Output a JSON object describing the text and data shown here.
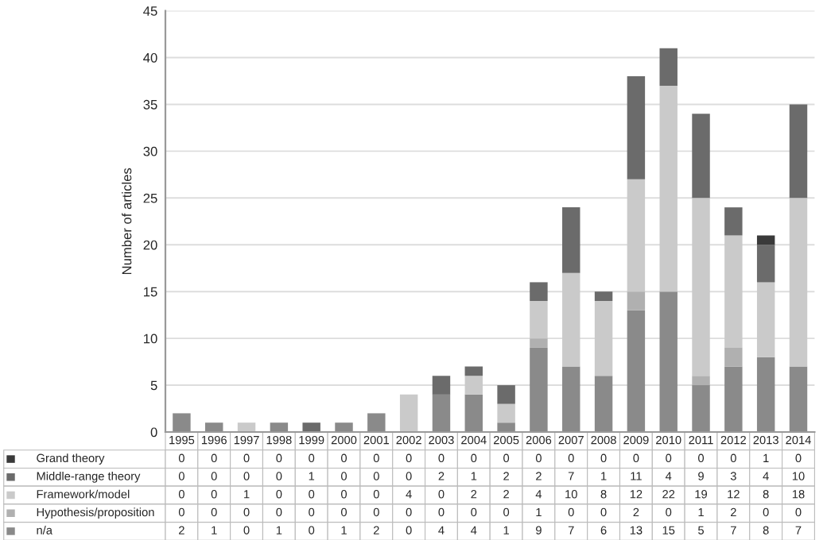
{
  "chart_data": {
    "type": "bar",
    "stacked": true,
    "ylabel": "Number of articles",
    "categories": [
      "1995",
      "1996",
      "1997",
      "1998",
      "1999",
      "2000",
      "2001",
      "2002",
      "2003",
      "2004",
      "2005",
      "2006",
      "2007",
      "2008",
      "2009",
      "2010",
      "2011",
      "2012",
      "2013",
      "2014"
    ],
    "series": [
      {
        "name": "n/a",
        "color": "#8a8a8a",
        "values": [
          2,
          1,
          0,
          1,
          0,
          1,
          2,
          0,
          4,
          4,
          1,
          9,
          7,
          6,
          13,
          15,
          5,
          7,
          8,
          7
        ]
      },
      {
        "name": "Hypothesis/proposition",
        "color": "#b0b0b0",
        "values": [
          0,
          0,
          0,
          0,
          0,
          0,
          0,
          0,
          0,
          0,
          0,
          1,
          0,
          0,
          2,
          0,
          1,
          2,
          0,
          0
        ]
      },
      {
        "name": "Framework/model",
        "color": "#cacaca",
        "values": [
          0,
          0,
          1,
          0,
          0,
          0,
          0,
          4,
          0,
          2,
          2,
          4,
          10,
          8,
          12,
          22,
          19,
          12,
          8,
          18
        ]
      },
      {
        "name": "Middle-range theory",
        "color": "#6b6b6b",
        "values": [
          0,
          0,
          0,
          0,
          1,
          0,
          0,
          0,
          2,
          1,
          2,
          2,
          7,
          1,
          11,
          4,
          9,
          3,
          4,
          10
        ]
      },
      {
        "name": "Grand theory",
        "color": "#3a3a3a",
        "values": [
          0,
          0,
          0,
          0,
          0,
          0,
          0,
          0,
          0,
          0,
          0,
          0,
          0,
          0,
          0,
          0,
          0,
          0,
          1,
          0
        ]
      }
    ],
    "ylim": [
      0,
      45
    ],
    "yticks": [
      0,
      5,
      10,
      15,
      20,
      25,
      30,
      35,
      40,
      45
    ],
    "grid": "y",
    "data_labels": true,
    "tick_labels": "y",
    "legend": "bottom left"
  }
}
